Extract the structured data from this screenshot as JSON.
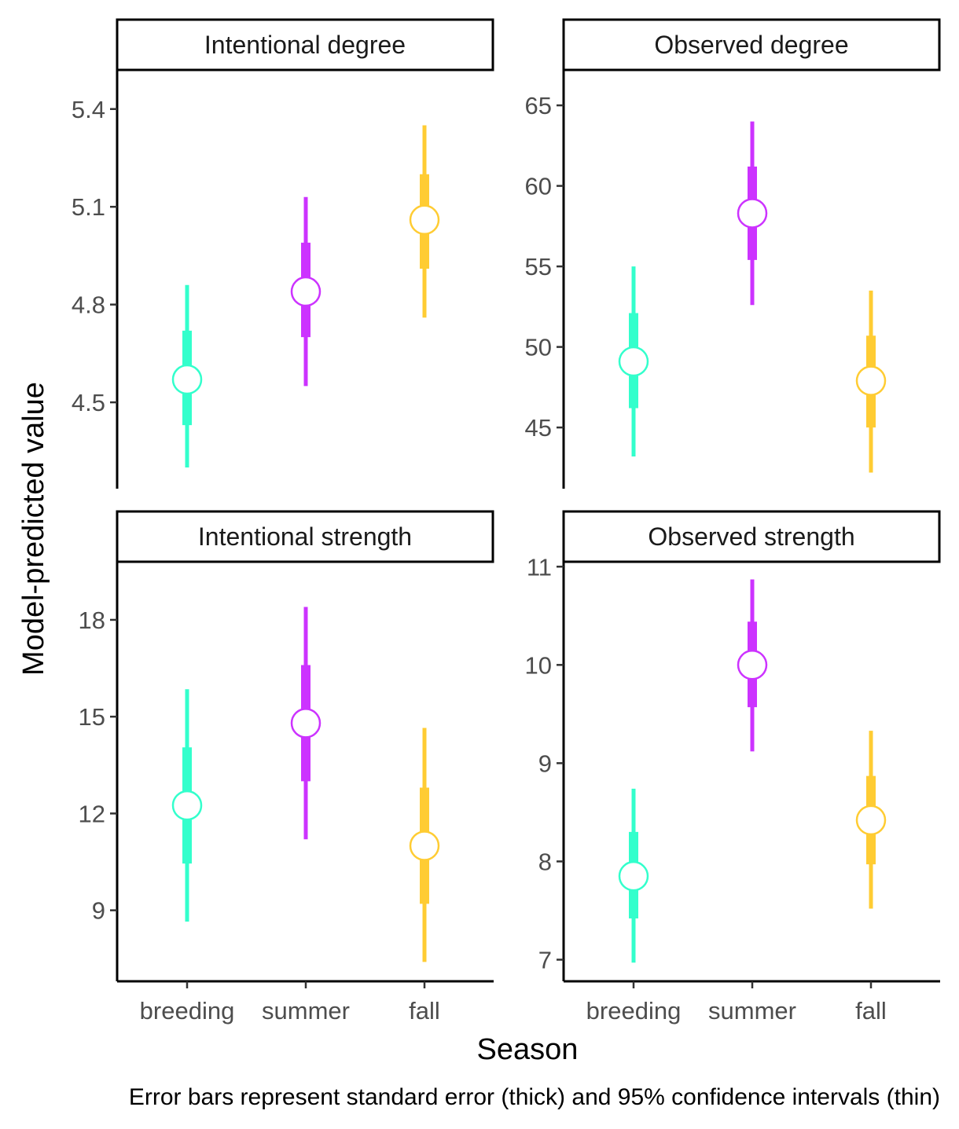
{
  "chart_data": {
    "type": "scatter",
    "layout": "facet_wrap 2x2, free y scales",
    "xlabel": "Season",
    "ylabel": "Model-predicted value",
    "caption": "Error bars represent standard error (thick) and 95% confidence intervals (thin)",
    "categories": [
      "breeding",
      "summer",
      "fall"
    ],
    "colors": {
      "breeding": "#33ffcc",
      "summer": "#cc33ff",
      "fall": "#ffcc33"
    },
    "grid": false,
    "legend": "none",
    "panels": [
      {
        "title": "Intentional degree",
        "ylim": [
          4.235,
          5.52
        ],
        "yticks": [
          4.5,
          4.8,
          5.1,
          5.4
        ],
        "ytick_labels": [
          "4.5",
          "4.8",
          "5.1",
          "5.4"
        ],
        "points": [
          {
            "season": "breeding",
            "estimate": 4.57,
            "se_low": 4.43,
            "se_high": 4.72,
            "ci_low": 4.3,
            "ci_high": 4.86
          },
          {
            "season": "summer",
            "estimate": 4.84,
            "se_low": 4.7,
            "se_high": 4.99,
            "ci_low": 4.55,
            "ci_high": 5.13
          },
          {
            "season": "fall",
            "estimate": 5.06,
            "se_low": 4.91,
            "se_high": 5.2,
            "ci_low": 4.76,
            "ci_high": 5.35
          }
        ]
      },
      {
        "title": "Observed degree",
        "ylim": [
          41.2,
          67.2
        ],
        "yticks": [
          45,
          50,
          55,
          60,
          65
        ],
        "ytick_labels": [
          "45",
          "50",
          "55",
          "60",
          "65"
        ],
        "points": [
          {
            "season": "breeding",
            "estimate": 49.1,
            "se_low": 46.2,
            "se_high": 52.1,
            "ci_low": 43.2,
            "ci_high": 55.0
          },
          {
            "season": "summer",
            "estimate": 58.3,
            "se_low": 55.4,
            "se_high": 61.2,
            "ci_low": 52.6,
            "ci_high": 64.0
          },
          {
            "season": "fall",
            "estimate": 47.9,
            "se_low": 45.0,
            "se_high": 50.7,
            "ci_low": 42.2,
            "ci_high": 53.5
          }
        ]
      },
      {
        "title": "Intentional strength",
        "ylim": [
          6.8,
          19.8
        ],
        "yticks": [
          9,
          12,
          15,
          18
        ],
        "ytick_labels": [
          "9",
          "12",
          "15",
          "18"
        ],
        "points": [
          {
            "season": "breeding",
            "estimate": 12.25,
            "se_low": 10.45,
            "se_high": 14.05,
            "ci_low": 8.65,
            "ci_high": 15.85
          },
          {
            "season": "summer",
            "estimate": 14.8,
            "se_low": 13.0,
            "se_high": 16.6,
            "ci_low": 11.2,
            "ci_high": 18.4
          },
          {
            "season": "fall",
            "estimate": 11.0,
            "se_low": 9.2,
            "se_high": 12.8,
            "ci_low": 7.4,
            "ci_high": 14.65
          }
        ]
      },
      {
        "title": "Observed strength",
        "ylim": [
          6.78,
          11.05
        ],
        "yticks": [
          7,
          8,
          9,
          10,
          11
        ],
        "ytick_labels": [
          "7",
          "8",
          "9",
          "10",
          "11"
        ],
        "points": [
          {
            "season": "breeding",
            "estimate": 7.85,
            "se_low": 7.42,
            "se_high": 8.3,
            "ci_low": 6.97,
            "ci_high": 8.74
          },
          {
            "season": "summer",
            "estimate": 10.0,
            "se_low": 9.57,
            "se_high": 10.44,
            "ci_low": 9.12,
            "ci_high": 10.87
          },
          {
            "season": "fall",
            "estimate": 8.42,
            "se_low": 7.97,
            "se_high": 8.87,
            "ci_low": 7.52,
            "ci_high": 9.33
          }
        ]
      }
    ]
  }
}
